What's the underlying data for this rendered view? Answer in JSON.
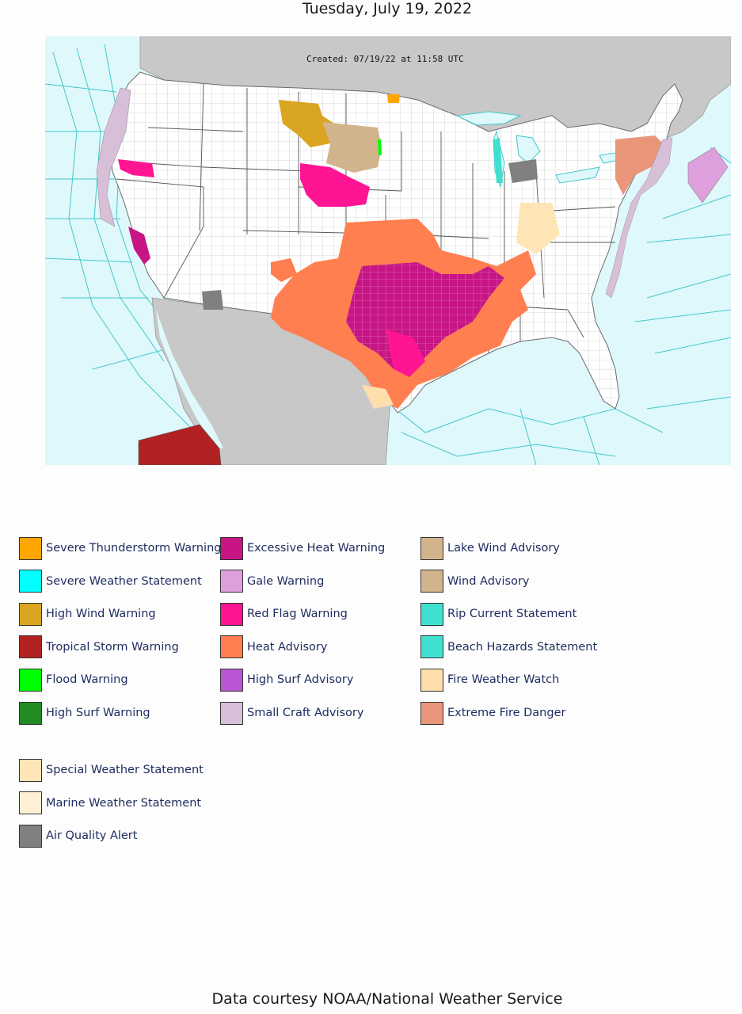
{
  "header": {
    "date": "Tuesday, July 19, 2022"
  },
  "map": {
    "created_label": "Created: 07/19/22 at 11:58 UTC",
    "colors": {
      "ocean": "#dff8fb",
      "land": "#ffffff",
      "foreign_land": "#c8c8c8",
      "county_lines": "#b8b8b8",
      "marine_zone_lines": "#42c8cc"
    }
  },
  "legend": {
    "columns": [
      [
        {
          "label": "Severe Thunderstorm Warning",
          "color": "#ffa500"
        },
        {
          "label": "Severe Weather Statement",
          "color": "#00ffff"
        },
        {
          "label": "High Wind Warning",
          "color": "#daa520"
        },
        {
          "label": "Tropical Storm Warning",
          "color": "#b22222"
        },
        {
          "label": "Flood Warning",
          "color": "#00ff00"
        },
        {
          "label": "High Surf Warning",
          "color": "#228b22"
        }
      ],
      [
        {
          "label": "Excessive Heat Warning",
          "color": "#c71585"
        },
        {
          "label": "Gale Warning",
          "color": "#dda0dd"
        },
        {
          "label": "Red Flag Warning",
          "color": "#ff1493"
        },
        {
          "label": "Heat Advisory",
          "color": "#ff7f50"
        },
        {
          "label": "High Surf Advisory",
          "color": "#ba55d3"
        },
        {
          "label": "Small Craft Advisory",
          "color": "#d8bfd8"
        }
      ],
      [
        {
          "label": "Lake Wind Advisory",
          "color": "#d2b48c"
        },
        {
          "label": "Wind Advisory",
          "color": "#d2b48c"
        },
        {
          "label": "Rip Current Statement",
          "color": "#40e0d0"
        },
        {
          "label": "Beach Hazards Statement",
          "color": "#40e0d0"
        },
        {
          "label": "Fire Weather Watch",
          "color": "#ffdead"
        },
        {
          "label": "Extreme Fire Danger",
          "color": "#e9967a"
        }
      ],
      [
        {
          "label": "Special Weather Statement",
          "color": "#ffe4b5"
        },
        {
          "label": "Marine Weather Statement",
          "color": "#ffefd5"
        },
        {
          "label": "Air Quality Alert",
          "color": "#808080"
        }
      ]
    ]
  },
  "footer": {
    "credit": "Data courtesy NOAA/National Weather Service"
  }
}
